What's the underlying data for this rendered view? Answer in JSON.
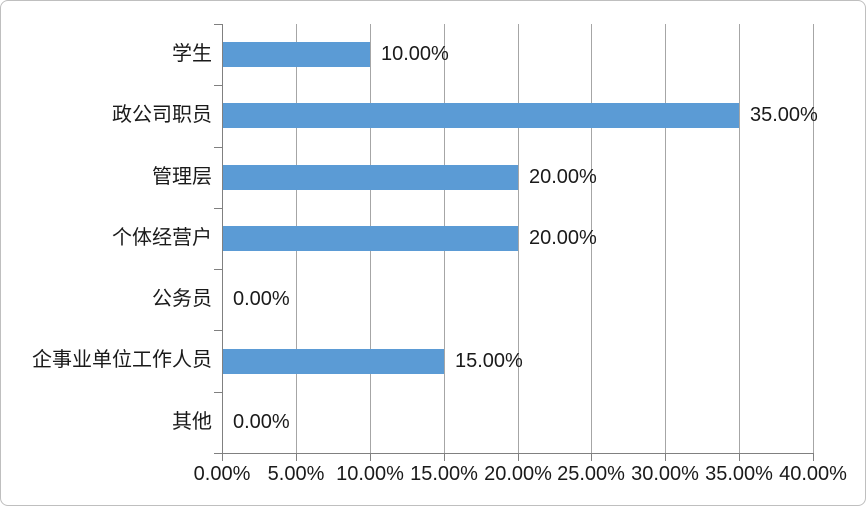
{
  "chart_data": {
    "type": "bar",
    "orientation": "horizontal",
    "title": "",
    "xlabel": "",
    "ylabel": "",
    "categories": [
      "学生",
      "政公司职员",
      "管理层",
      "个体经营户",
      "公务员",
      "企事业单位工作人员",
      "其他"
    ],
    "values": [
      10,
      35,
      20,
      20,
      0,
      15,
      0
    ],
    "value_labels": [
      "10.00%",
      "35.00%",
      "20.00%",
      "20.00%",
      "0.00%",
      "15.00%",
      "0.00%"
    ],
    "x_tick_labels": [
      "0.00%",
      "5.00%",
      "10.00%",
      "15.00%",
      "20.00%",
      "25.00%",
      "30.00%",
      "35.00%",
      "40.00%"
    ],
    "x_tick_values": [
      0,
      5,
      10,
      15,
      20,
      25,
      30,
      35,
      40
    ],
    "xlim": [
      0,
      40
    ],
    "grid": "vertical-major",
    "legend": "none",
    "colors": {
      "bar_fill": "#5B9BD5",
      "gridline": "#A6A6A6",
      "axis_line": "#808080",
      "text": "#1a1a1a",
      "chart_border": "#BFBFBF",
      "background": "#FFFFFF"
    }
  }
}
